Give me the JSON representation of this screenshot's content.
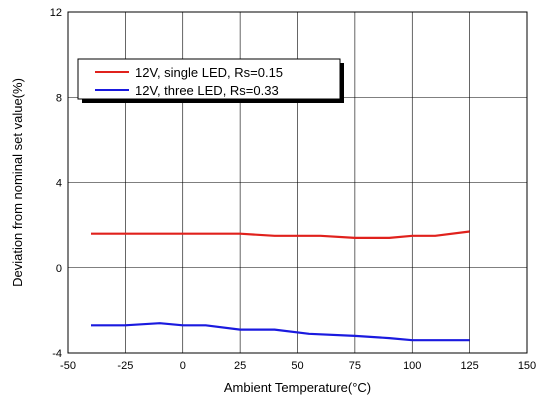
{
  "chart_data": {
    "type": "line",
    "title": "",
    "xlabel": "Ambient Temperature(°C)",
    "ylabel": "Deviation from nominal set value(%)",
    "xlim": [
      -50,
      150
    ],
    "ylim": [
      -4,
      12
    ],
    "xticks": [
      -50,
      -25,
      0,
      25,
      50,
      75,
      100,
      125,
      150
    ],
    "yticks": [
      -4,
      0,
      4,
      8,
      12
    ],
    "grid": true,
    "legend_position": "top-left",
    "series": [
      {
        "name": "12V, single LED, Rs=0.15",
        "color": "#e0211c",
        "x": [
          -40,
          -25,
          0,
          25,
          40,
          60,
          75,
          90,
          100,
          110,
          125
        ],
        "y": [
          1.6,
          1.6,
          1.6,
          1.6,
          1.5,
          1.5,
          1.4,
          1.4,
          1.5,
          1.5,
          1.7
        ]
      },
      {
        "name": "12V, three LED, Rs=0.33",
        "color": "#1a1adf",
        "x": [
          -40,
          -25,
          -10,
          0,
          10,
          25,
          40,
          55,
          75,
          90,
          100,
          110,
          125
        ],
        "y": [
          -2.7,
          -2.7,
          -2.6,
          -2.7,
          -2.7,
          -2.9,
          -2.9,
          -3.1,
          -3.2,
          -3.3,
          -3.4,
          -3.4,
          -3.4
        ]
      }
    ]
  }
}
